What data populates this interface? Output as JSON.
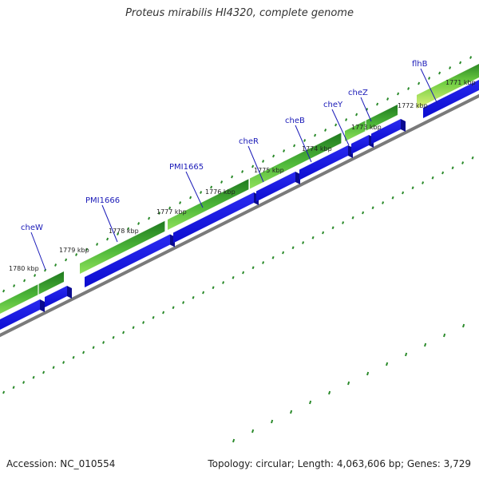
{
  "title": "Proteus mirabilis HI4320, complete genome",
  "footer": {
    "accession": "Accession: NC_010554",
    "summary": "Topology: circular; Length: 4,063,606 bp; Genes: 3,729"
  },
  "colors": {
    "gene_label": "#1a1ab8",
    "cds_blue": "#1010e6",
    "cds_blue_side": "#0a0a90",
    "gene_green_dark": "#1f7a1f",
    "gene_green_light": "#7ad84a",
    "gene_green_yellow": "#d8f070",
    "backbone": "#888888",
    "tick": "#2a8a2a"
  },
  "kbp_labels": [
    "1771 kbp",
    "1772 kbp",
    "1773 kbp",
    "1774 kbp",
    "1775 kbp",
    "1776 kbp",
    "1777 kbp",
    "1778 kbp",
    "1779 kbp",
    "1780 kbp"
  ],
  "gene_labels": [
    "flhB",
    "cheZ",
    "cheY",
    "cheB",
    "cheR",
    "PMI1665",
    "PMI1666",
    "cheW"
  ]
}
